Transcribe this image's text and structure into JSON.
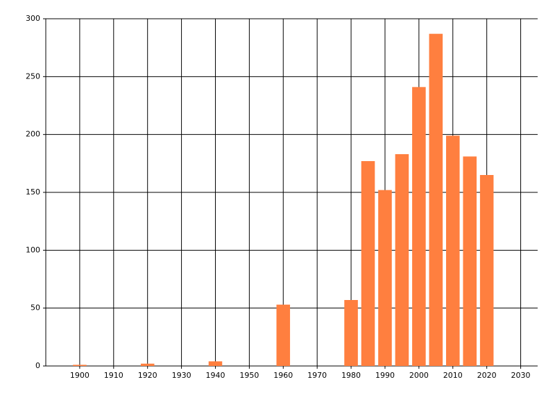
{
  "chart_data": {
    "type": "bar",
    "x": [
      1900,
      1920,
      1940,
      1960,
      1980,
      1985,
      1990,
      1995,
      2000,
      2005,
      2010,
      2015,
      2020
    ],
    "values": [
      1,
      2,
      4,
      53,
      57,
      177,
      152,
      183,
      241,
      287,
      199,
      181,
      165
    ],
    "color": "#ff7f3f",
    "xlim": [
      1890,
      2035
    ],
    "xticks": [
      1900,
      1910,
      1920,
      1930,
      1940,
      1950,
      1960,
      1970,
      1980,
      1990,
      2000,
      2010,
      2020,
      2030
    ],
    "ylim": [
      0,
      300
    ],
    "yticks": [
      0,
      50,
      100,
      150,
      200,
      250,
      300
    ],
    "grid": true
  }
}
